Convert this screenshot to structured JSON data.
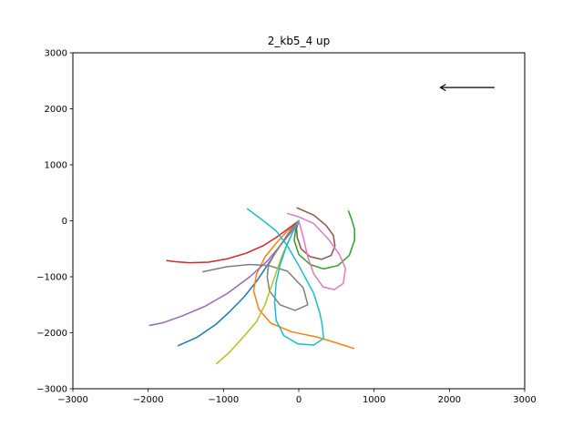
{
  "chart_data": {
    "type": "line",
    "title": "2_kb5_4 up",
    "xlabel": "",
    "ylabel": "",
    "xlim": [
      -3000,
      3000
    ],
    "ylim": [
      -3000,
      3000
    ],
    "xticks": [
      -3000,
      -2000,
      -1000,
      0,
      1000,
      2000,
      3000
    ],
    "yticks": [
      -3000,
      -2000,
      -1000,
      0,
      1000,
      2000,
      3000
    ],
    "xtick_labels": [
      "−3000",
      "−2000",
      "−1000",
      "0",
      "1000",
      "2000",
      "3000"
    ],
    "ytick_labels": [
      "−3000",
      "−2000",
      "−1000",
      "0",
      "1000",
      "2000",
      "3000"
    ],
    "grid": false,
    "arrow": {
      "from": [
        2600,
        2380
      ],
      "to": [
        1880,
        2380
      ],
      "color": "#000000"
    },
    "series": [
      {
        "color": "#1f77b4",
        "points": [
          [
            0,
            0
          ],
          [
            -100,
            -150
          ],
          [
            -200,
            -350
          ],
          [
            -300,
            -550
          ],
          [
            -420,
            -800
          ],
          [
            -560,
            -1080
          ],
          [
            -720,
            -1350
          ],
          [
            -900,
            -1600
          ],
          [
            -1100,
            -1850
          ],
          [
            -1350,
            -2080
          ],
          [
            -1600,
            -2230
          ]
        ]
      },
      {
        "color": "#ff7f0e",
        "points": [
          [
            0,
            0
          ],
          [
            -150,
            -180
          ],
          [
            -300,
            -400
          ],
          [
            -450,
            -650
          ],
          [
            -560,
            -950
          ],
          [
            -600,
            -1250
          ],
          [
            -530,
            -1580
          ],
          [
            -370,
            -1830
          ],
          [
            -100,
            -1980
          ],
          [
            250,
            -2080
          ],
          [
            500,
            -2180
          ],
          [
            730,
            -2280
          ]
        ]
      },
      {
        "color": "#2ca02c",
        "points": [
          [
            0,
            0
          ],
          [
            -40,
            -150
          ],
          [
            -60,
            -350
          ],
          [
            0,
            -600
          ],
          [
            150,
            -780
          ],
          [
            330,
            -860
          ],
          [
            520,
            -800
          ],
          [
            670,
            -620
          ],
          [
            740,
            -350
          ],
          [
            740,
            -150
          ],
          [
            700,
            30
          ],
          [
            660,
            170
          ]
        ]
      },
      {
        "color": "#d62728",
        "points": [
          [
            0,
            0
          ],
          [
            -150,
            -150
          ],
          [
            -300,
            -300
          ],
          [
            -480,
            -450
          ],
          [
            -700,
            -580
          ],
          [
            -950,
            -680
          ],
          [
            -1200,
            -740
          ],
          [
            -1450,
            -750
          ],
          [
            -1650,
            -730
          ],
          [
            -1750,
            -710
          ]
        ]
      },
      {
        "color": "#9467bd",
        "points": [
          [
            0,
            0
          ],
          [
            -100,
            -200
          ],
          [
            -250,
            -450
          ],
          [
            -420,
            -720
          ],
          [
            -650,
            -1000
          ],
          [
            -950,
            -1300
          ],
          [
            -1250,
            -1530
          ],
          [
            -1550,
            -1700
          ],
          [
            -1800,
            -1820
          ],
          [
            -1980,
            -1870
          ]
        ]
      },
      {
        "color": "#8c564b",
        "points": [
          [
            0,
            0
          ],
          [
            -30,
            -130
          ],
          [
            -20,
            -300
          ],
          [
            30,
            -500
          ],
          [
            150,
            -640
          ],
          [
            300,
            -690
          ],
          [
            430,
            -620
          ],
          [
            480,
            -450
          ],
          [
            460,
            -260
          ],
          [
            360,
            -80
          ],
          [
            200,
            100
          ],
          [
            -20,
            230
          ]
        ]
      },
      {
        "color": "#e377c2",
        "points": [
          [
            0,
            0
          ],
          [
            30,
            -150
          ],
          [
            70,
            -350
          ],
          [
            120,
            -650
          ],
          [
            200,
            -950
          ],
          [
            320,
            -1180
          ],
          [
            470,
            -1230
          ],
          [
            590,
            -1120
          ],
          [
            620,
            -850
          ],
          [
            540,
            -600
          ],
          [
            400,
            -340
          ],
          [
            200,
            -50
          ],
          [
            -20,
            80
          ],
          [
            -150,
            130
          ]
        ]
      },
      {
        "color": "#7f7f7f",
        "points": [
          [
            0,
            0
          ],
          [
            -100,
            -150
          ],
          [
            -200,
            -350
          ],
          [
            -300,
            -550
          ],
          [
            -400,
            -780
          ],
          [
            -420,
            -1000
          ],
          [
            -390,
            -1250
          ],
          [
            -250,
            -1500
          ],
          [
            -50,
            -1600
          ],
          [
            120,
            -1500
          ],
          [
            60,
            -1200
          ],
          [
            -150,
            -900
          ],
          [
            -400,
            -800
          ],
          [
            -650,
            -780
          ],
          [
            -950,
            -820
          ],
          [
            -1270,
            -910
          ]
        ]
      },
      {
        "color": "#bcbd22",
        "points": [
          [
            0,
            0
          ],
          [
            -80,
            -200
          ],
          [
            -150,
            -400
          ],
          [
            -230,
            -650
          ],
          [
            -300,
            -920
          ],
          [
            -370,
            -1200
          ],
          [
            -450,
            -1500
          ],
          [
            -560,
            -1800
          ],
          [
            -720,
            -2050
          ],
          [
            -920,
            -2350
          ],
          [
            -1090,
            -2550
          ]
        ]
      },
      {
        "color": "#17becf",
        "points": [
          [
            0,
            0
          ],
          [
            -80,
            -200
          ],
          [
            -170,
            -480
          ],
          [
            -250,
            -800
          ],
          [
            -300,
            -1100
          ],
          [
            -320,
            -1450
          ],
          [
            -300,
            -1780
          ],
          [
            -200,
            -2050
          ],
          [
            -10,
            -2200
          ],
          [
            200,
            -2220
          ],
          [
            330,
            -2100
          ],
          [
            310,
            -1850
          ],
          [
            280,
            -1650
          ],
          [
            200,
            -1300
          ],
          [
            0,
            -800
          ],
          [
            -150,
            -450
          ],
          [
            -300,
            -180
          ],
          [
            -500,
            30
          ],
          [
            -680,
            210
          ]
        ]
      }
    ]
  }
}
